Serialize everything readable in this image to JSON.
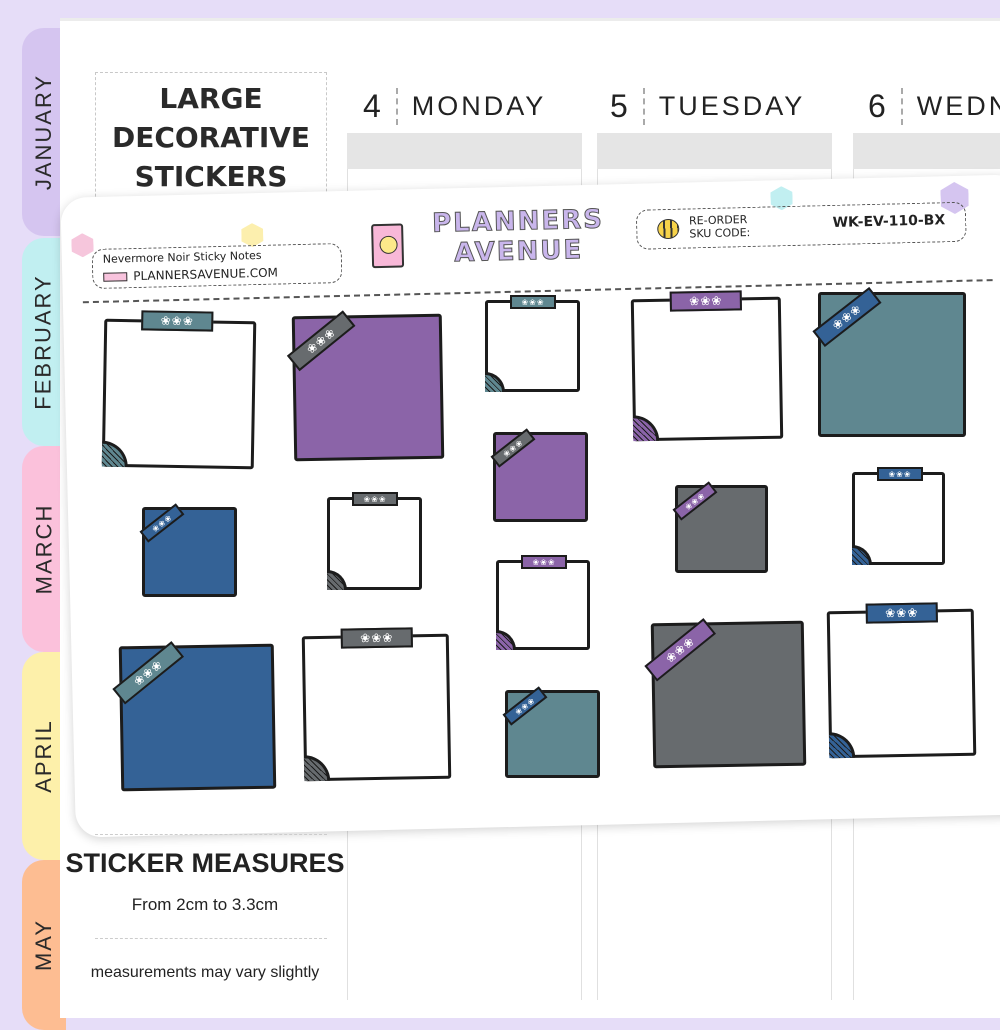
{
  "tabs": [
    {
      "label": "JANUARY",
      "color": "#d5c5f0"
    },
    {
      "label": "FEBRUARY",
      "color": "#c1eff1"
    },
    {
      "label": "MARCH",
      "color": "#fbc1db"
    },
    {
      "label": "APRIL",
      "color": "#fdf0aa"
    },
    {
      "label": "MAY",
      "color": "#fdbd92"
    }
  ],
  "title": {
    "line1": "LARGE",
    "line2": "DECORATIVE",
    "line3": "STICKERS"
  },
  "days": [
    {
      "num": "4",
      "name": "MONDAY"
    },
    {
      "num": "5",
      "name": "TUESDAY"
    },
    {
      "num": "6",
      "name": "WEDN"
    }
  ],
  "sheet": {
    "product_name": "Nevermore Noir Sticky Notes",
    "website": "PLANNERSAVENUE.COM",
    "logo": "PLANNERS AVENUE",
    "reorder_label1": "RE-ORDER",
    "reorder_label2": "SKU CODE:",
    "sku": "WK-EV-110-BX",
    "tape_glyph": "❀❀❀",
    "colors": {
      "white": "#ffffff",
      "purple": "#8b64a8",
      "teal": "#5f8790",
      "blue": "#346296",
      "gray": "#676b6e"
    }
  },
  "footer": {
    "measures_title": "STICKER MEASURES",
    "measures_value": "From 2cm to 3.3cm",
    "disclaimer": "measurements may vary slightly"
  }
}
